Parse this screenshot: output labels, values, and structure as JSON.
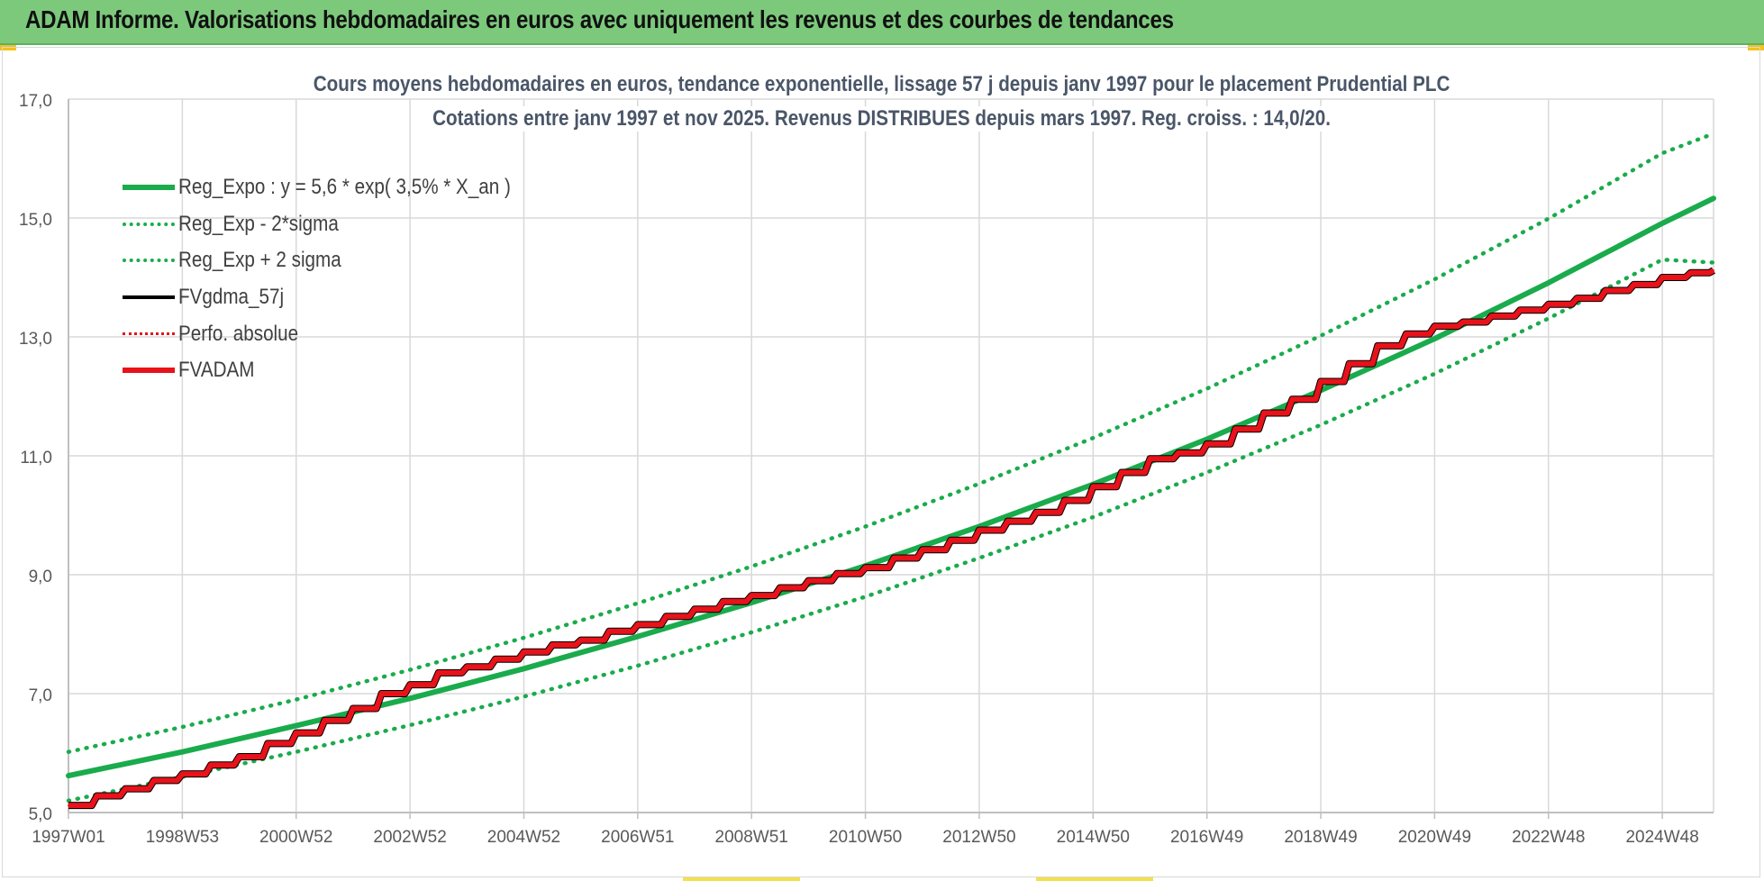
{
  "banner": {
    "title": "ADAM Informe. Valorisations hebdomadaires en euros avec uniquement les revenus et des courbes de tendances"
  },
  "colors": {
    "banner_bg": "#7cc97c",
    "trend_green": "#1aab4c",
    "fvgdma_black": "#000000",
    "fvadam_red": "#e8121a",
    "perfo_red": "#e8121a",
    "grid": "#d9d9d9",
    "title_text": "#4a5668"
  },
  "chart_data": {
    "type": "line",
    "title_line1": "Cours moyens hebdomadaires en euros, tendance exponentielle, lissage 57 j depuis janv 1997 pour le placement Prudential PLC",
    "title_line2": "Cotations entre janv 1997 et nov 2025. Revenus DISTRIBUES depuis mars 1997. Reg. croiss. : 14,0/20.",
    "xlabel": "",
    "ylabel": "",
    "ylim": [
      5.0,
      17.0
    ],
    "yticks": [
      "5,0",
      "7,0",
      "9,0",
      "11,0",
      "13,0",
      "15,0",
      "17,0"
    ],
    "ytick_values": [
      5,
      7,
      9,
      11,
      13,
      15,
      17
    ],
    "xlim": [
      1997.0,
      2025.9
    ],
    "xticks": [
      "1997W01",
      "1998W53",
      "2000W52",
      "2002W52",
      "2004W52",
      "2006W51",
      "2008W51",
      "2010W50",
      "2012W50",
      "2014W50",
      "2016W49",
      "2018W49",
      "2020W49",
      "2022W48",
      "2024W48"
    ],
    "xtick_values": [
      1997.0,
      1999.0,
      2001.0,
      2003.0,
      2005.0,
      2007.0,
      2009.0,
      2011.0,
      2013.0,
      2015.0,
      2017.0,
      2019.0,
      2021.0,
      2023.0,
      2025.0
    ],
    "grid": true,
    "legend_position": "top-left",
    "series": [
      {
        "name": "Reg_Expo : y = 5,6 * exp( 3,5% *  X_an )",
        "style": "solid",
        "color": "#1aab4c",
        "x": [
          1997,
          1999,
          2001,
          2003,
          2005,
          2007,
          2009,
          2011,
          2013,
          2015,
          2017,
          2019,
          2021,
          2023,
          2025,
          2025.9
        ],
        "values": [
          5.62,
          6.02,
          6.46,
          6.92,
          7.42,
          7.96,
          8.53,
          9.15,
          9.81,
          10.52,
          11.28,
          12.1,
          12.97,
          13.91,
          14.91,
          15.33
        ]
      },
      {
        "name": "Reg_Exp - 2*sigma",
        "style": "dotted",
        "color": "#1aab4c",
        "x": [
          1997,
          1999,
          2001,
          2003,
          2005,
          2007,
          2009,
          2011,
          2013,
          2015,
          2017,
          2019,
          2021,
          2023,
          2025,
          2025.9
        ],
        "values": [
          5.2,
          5.6,
          6.02,
          6.47,
          6.95,
          7.47,
          8.03,
          8.63,
          9.28,
          9.97,
          10.72,
          11.52,
          12.38,
          13.31,
          14.3,
          14.25
        ]
      },
      {
        "name": "Reg_Exp + 2 sigma",
        "style": "dotted",
        "color": "#1aab4c",
        "x": [
          1997,
          1999,
          2001,
          2003,
          2005,
          2007,
          2009,
          2011,
          2013,
          2015,
          2017,
          2019,
          2021,
          2023,
          2025,
          2025.9
        ],
        "values": [
          6.02,
          6.44,
          6.9,
          7.4,
          7.94,
          8.52,
          9.14,
          9.81,
          10.53,
          11.3,
          12.13,
          13.02,
          13.97,
          14.99,
          16.09,
          16.42
        ]
      },
      {
        "name": "FVgdma_57j",
        "style": "solid-thin",
        "color": "#000000",
        "x": [
          1997.0,
          1997.5,
          1998.0,
          1998.5,
          1999.0,
          1999.5,
          2000.0,
          2000.5,
          2001.0,
          2001.5,
          2002.0,
          2002.5,
          2003.0,
          2003.5,
          2004.0,
          2004.5,
          2005.0,
          2005.5,
          2006.0,
          2006.5,
          2007.0,
          2007.5,
          2008.0,
          2008.5,
          2009.0,
          2009.5,
          2010.0,
          2010.5,
          2011.0,
          2011.5,
          2012.0,
          2012.5,
          2013.0,
          2013.5,
          2014.0,
          2014.5,
          2015.0,
          2015.5,
          2016.0,
          2016.5,
          2017.0,
          2017.5,
          2018.0,
          2018.5,
          2019.0,
          2019.5,
          2020.0,
          2020.5,
          2021.0,
          2021.5,
          2022.0,
          2022.5,
          2023.0,
          2023.5,
          2024.0,
          2024.5,
          2025.0,
          2025.5,
          2025.9
        ],
        "values": [
          5.12,
          5.28,
          5.4,
          5.54,
          5.65,
          5.8,
          5.94,
          6.16,
          6.34,
          6.55,
          6.75,
          7.0,
          7.15,
          7.35,
          7.45,
          7.58,
          7.7,
          7.82,
          7.9,
          8.05,
          8.16,
          8.3,
          8.42,
          8.55,
          8.65,
          8.78,
          8.9,
          9.02,
          9.12,
          9.28,
          9.42,
          9.58,
          9.75,
          9.9,
          10.05,
          10.25,
          10.48,
          10.72,
          10.95,
          11.05,
          11.2,
          11.45,
          11.72,
          11.95,
          12.25,
          12.55,
          12.85,
          13.05,
          13.18,
          13.25,
          13.35,
          13.45,
          13.55,
          13.65,
          13.78,
          13.88,
          14.0,
          14.08,
          14.12
        ]
      },
      {
        "name": "Perfo. absolue",
        "style": "dotted",
        "color": "#e8121a",
        "x": [
          1997.0,
          1997.5,
          1998.0,
          1998.5,
          1999.0,
          1999.5,
          2000.0,
          2000.5,
          2001.0,
          2001.5,
          2002.0,
          2002.5,
          2003.0,
          2003.5,
          2004.0,
          2004.5,
          2005.0,
          2005.5,
          2006.0,
          2006.5,
          2007.0,
          2007.5,
          2008.0,
          2008.5,
          2009.0,
          2009.5,
          2010.0,
          2010.5,
          2011.0,
          2011.5,
          2012.0,
          2012.5,
          2013.0,
          2013.5,
          2014.0,
          2014.5,
          2015.0,
          2015.5,
          2016.0,
          2016.5,
          2017.0,
          2017.5,
          2018.0,
          2018.5,
          2019.0,
          2019.5,
          2020.0,
          2020.5,
          2021.0,
          2021.5,
          2022.0,
          2022.5,
          2023.0,
          2023.5,
          2024.0,
          2024.5,
          2025.0,
          2025.5,
          2025.9
        ],
        "values": [
          5.12,
          5.28,
          5.4,
          5.54,
          5.65,
          5.8,
          5.94,
          6.16,
          6.34,
          6.55,
          6.75,
          7.0,
          7.15,
          7.35,
          7.45,
          7.58,
          7.7,
          7.82,
          7.9,
          8.05,
          8.16,
          8.3,
          8.42,
          8.55,
          8.65,
          8.78,
          8.9,
          9.02,
          9.12,
          9.28,
          9.42,
          9.58,
          9.75,
          9.9,
          10.05,
          10.25,
          10.48,
          10.72,
          10.95,
          11.05,
          11.2,
          11.45,
          11.72,
          11.95,
          12.25,
          12.55,
          12.85,
          13.05,
          13.18,
          13.25,
          13.35,
          13.45,
          13.55,
          13.65,
          13.78,
          13.88,
          14.0,
          14.08,
          14.12
        ]
      },
      {
        "name": "FVADAM",
        "style": "step",
        "color": "#e8121a",
        "x": [
          1997.0,
          1997.5,
          1998.0,
          1998.5,
          1999.0,
          1999.5,
          2000.0,
          2000.5,
          2001.0,
          2001.5,
          2002.0,
          2002.5,
          2003.0,
          2003.5,
          2004.0,
          2004.5,
          2005.0,
          2005.5,
          2006.0,
          2006.5,
          2007.0,
          2007.5,
          2008.0,
          2008.5,
          2009.0,
          2009.5,
          2010.0,
          2010.5,
          2011.0,
          2011.5,
          2012.0,
          2012.5,
          2013.0,
          2013.5,
          2014.0,
          2014.5,
          2015.0,
          2015.5,
          2016.0,
          2016.5,
          2017.0,
          2017.5,
          2018.0,
          2018.5,
          2019.0,
          2019.5,
          2020.0,
          2020.5,
          2021.0,
          2021.5,
          2022.0,
          2022.5,
          2023.0,
          2023.5,
          2024.0,
          2024.5,
          2025.0,
          2025.5,
          2025.9
        ],
        "values": [
          5.12,
          5.28,
          5.4,
          5.54,
          5.65,
          5.8,
          5.94,
          6.16,
          6.34,
          6.55,
          6.75,
          7.0,
          7.15,
          7.35,
          7.45,
          7.58,
          7.7,
          7.82,
          7.9,
          8.05,
          8.16,
          8.3,
          8.42,
          8.55,
          8.65,
          8.78,
          8.9,
          9.02,
          9.12,
          9.28,
          9.42,
          9.58,
          9.75,
          9.9,
          10.05,
          10.25,
          10.48,
          10.72,
          10.95,
          11.05,
          11.2,
          11.45,
          11.72,
          11.95,
          12.25,
          12.55,
          12.85,
          13.05,
          13.18,
          13.25,
          13.35,
          13.45,
          13.55,
          13.65,
          13.78,
          13.88,
          14.0,
          14.08,
          14.12
        ]
      }
    ]
  }
}
